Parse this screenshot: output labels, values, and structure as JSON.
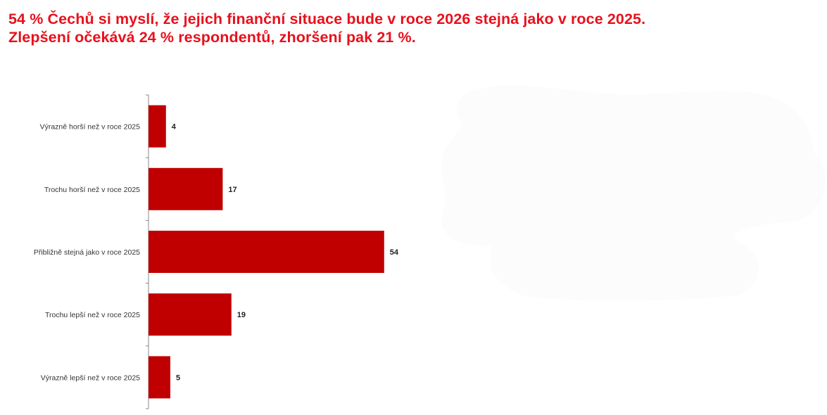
{
  "title_lines": [
    "54 % Čechů si myslí, že jejich finanční situace bude v roce 2026 stejná jako v roce 2025.",
    "Zlepšení očekává 24 % respondentů, zhoršení pak 21 %."
  ],
  "colors": {
    "title": "#e8101c",
    "bar": "#c00000",
    "axis": "#888888",
    "background_shape": "#fcfcfc"
  },
  "chart_data": {
    "type": "bar",
    "orientation": "horizontal",
    "categories": [
      "Výrazně horší než v roce 2025",
      "Trochu horší než v roce 2025",
      "Přibližně stejná jako v roce 2025",
      "Trochu lepší než v roce 2025",
      "Výrazně lepší než v roce 2025"
    ],
    "values": [
      4,
      17,
      54,
      19,
      5
    ],
    "data_labels": [
      "4",
      "17",
      "54",
      "19",
      "5"
    ],
    "xlim": [
      0,
      100
    ],
    "grid": false,
    "legend": "none"
  }
}
